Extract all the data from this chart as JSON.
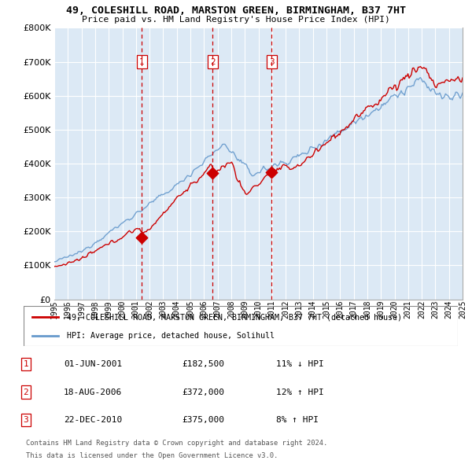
{
  "title_line1": "49, COLESHILL ROAD, MARSTON GREEN, BIRMINGHAM, B37 7HT",
  "title_line2": "Price paid vs. HM Land Registry's House Price Index (HPI)",
  "background_color": "#ffffff",
  "chart_bg_color": "#dce9f5",
  "grid_color": "#ffffff",
  "hpi_color": "#6699cc",
  "price_color": "#cc0000",
  "dashed_color": "#cc0000",
  "transactions": [
    {
      "label": "1",
      "date": "01-JUN-2001",
      "price": 182500,
      "pct": "11%",
      "dir": "↓",
      "x": 2001.42
    },
    {
      "label": "2",
      "date": "18-AUG-2006",
      "price": 372000,
      "pct": "12%",
      "dir": "↑",
      "x": 2006.63
    },
    {
      "label": "3",
      "date": "22-DEC-2010",
      "price": 375000,
      "pct": "8%",
      "dir": "↑",
      "x": 2010.97
    }
  ],
  "legend_label_red": "49, COLESHILL ROAD, MARSTON GREEN, BIRMINGHAM, B37 7HT (detached house)",
  "legend_label_blue": "HPI: Average price, detached house, Solihull",
  "footer_line1": "Contains HM Land Registry data © Crown copyright and database right 2024.",
  "footer_line2": "This data is licensed under the Open Government Licence v3.0.",
  "ylim": [
    0,
    800000
  ],
  "yticks": [
    0,
    100000,
    200000,
    300000,
    400000,
    500000,
    600000,
    700000,
    800000
  ],
  "xmin": 1995,
  "xmax": 2025,
  "xticks": [
    1995,
    1996,
    1997,
    1998,
    1999,
    2000,
    2001,
    2002,
    2003,
    2004,
    2005,
    2006,
    2007,
    2008,
    2009,
    2010,
    2011,
    2012,
    2013,
    2014,
    2015,
    2016,
    2017,
    2018,
    2019,
    2020,
    2021,
    2022,
    2023,
    2024,
    2025
  ]
}
